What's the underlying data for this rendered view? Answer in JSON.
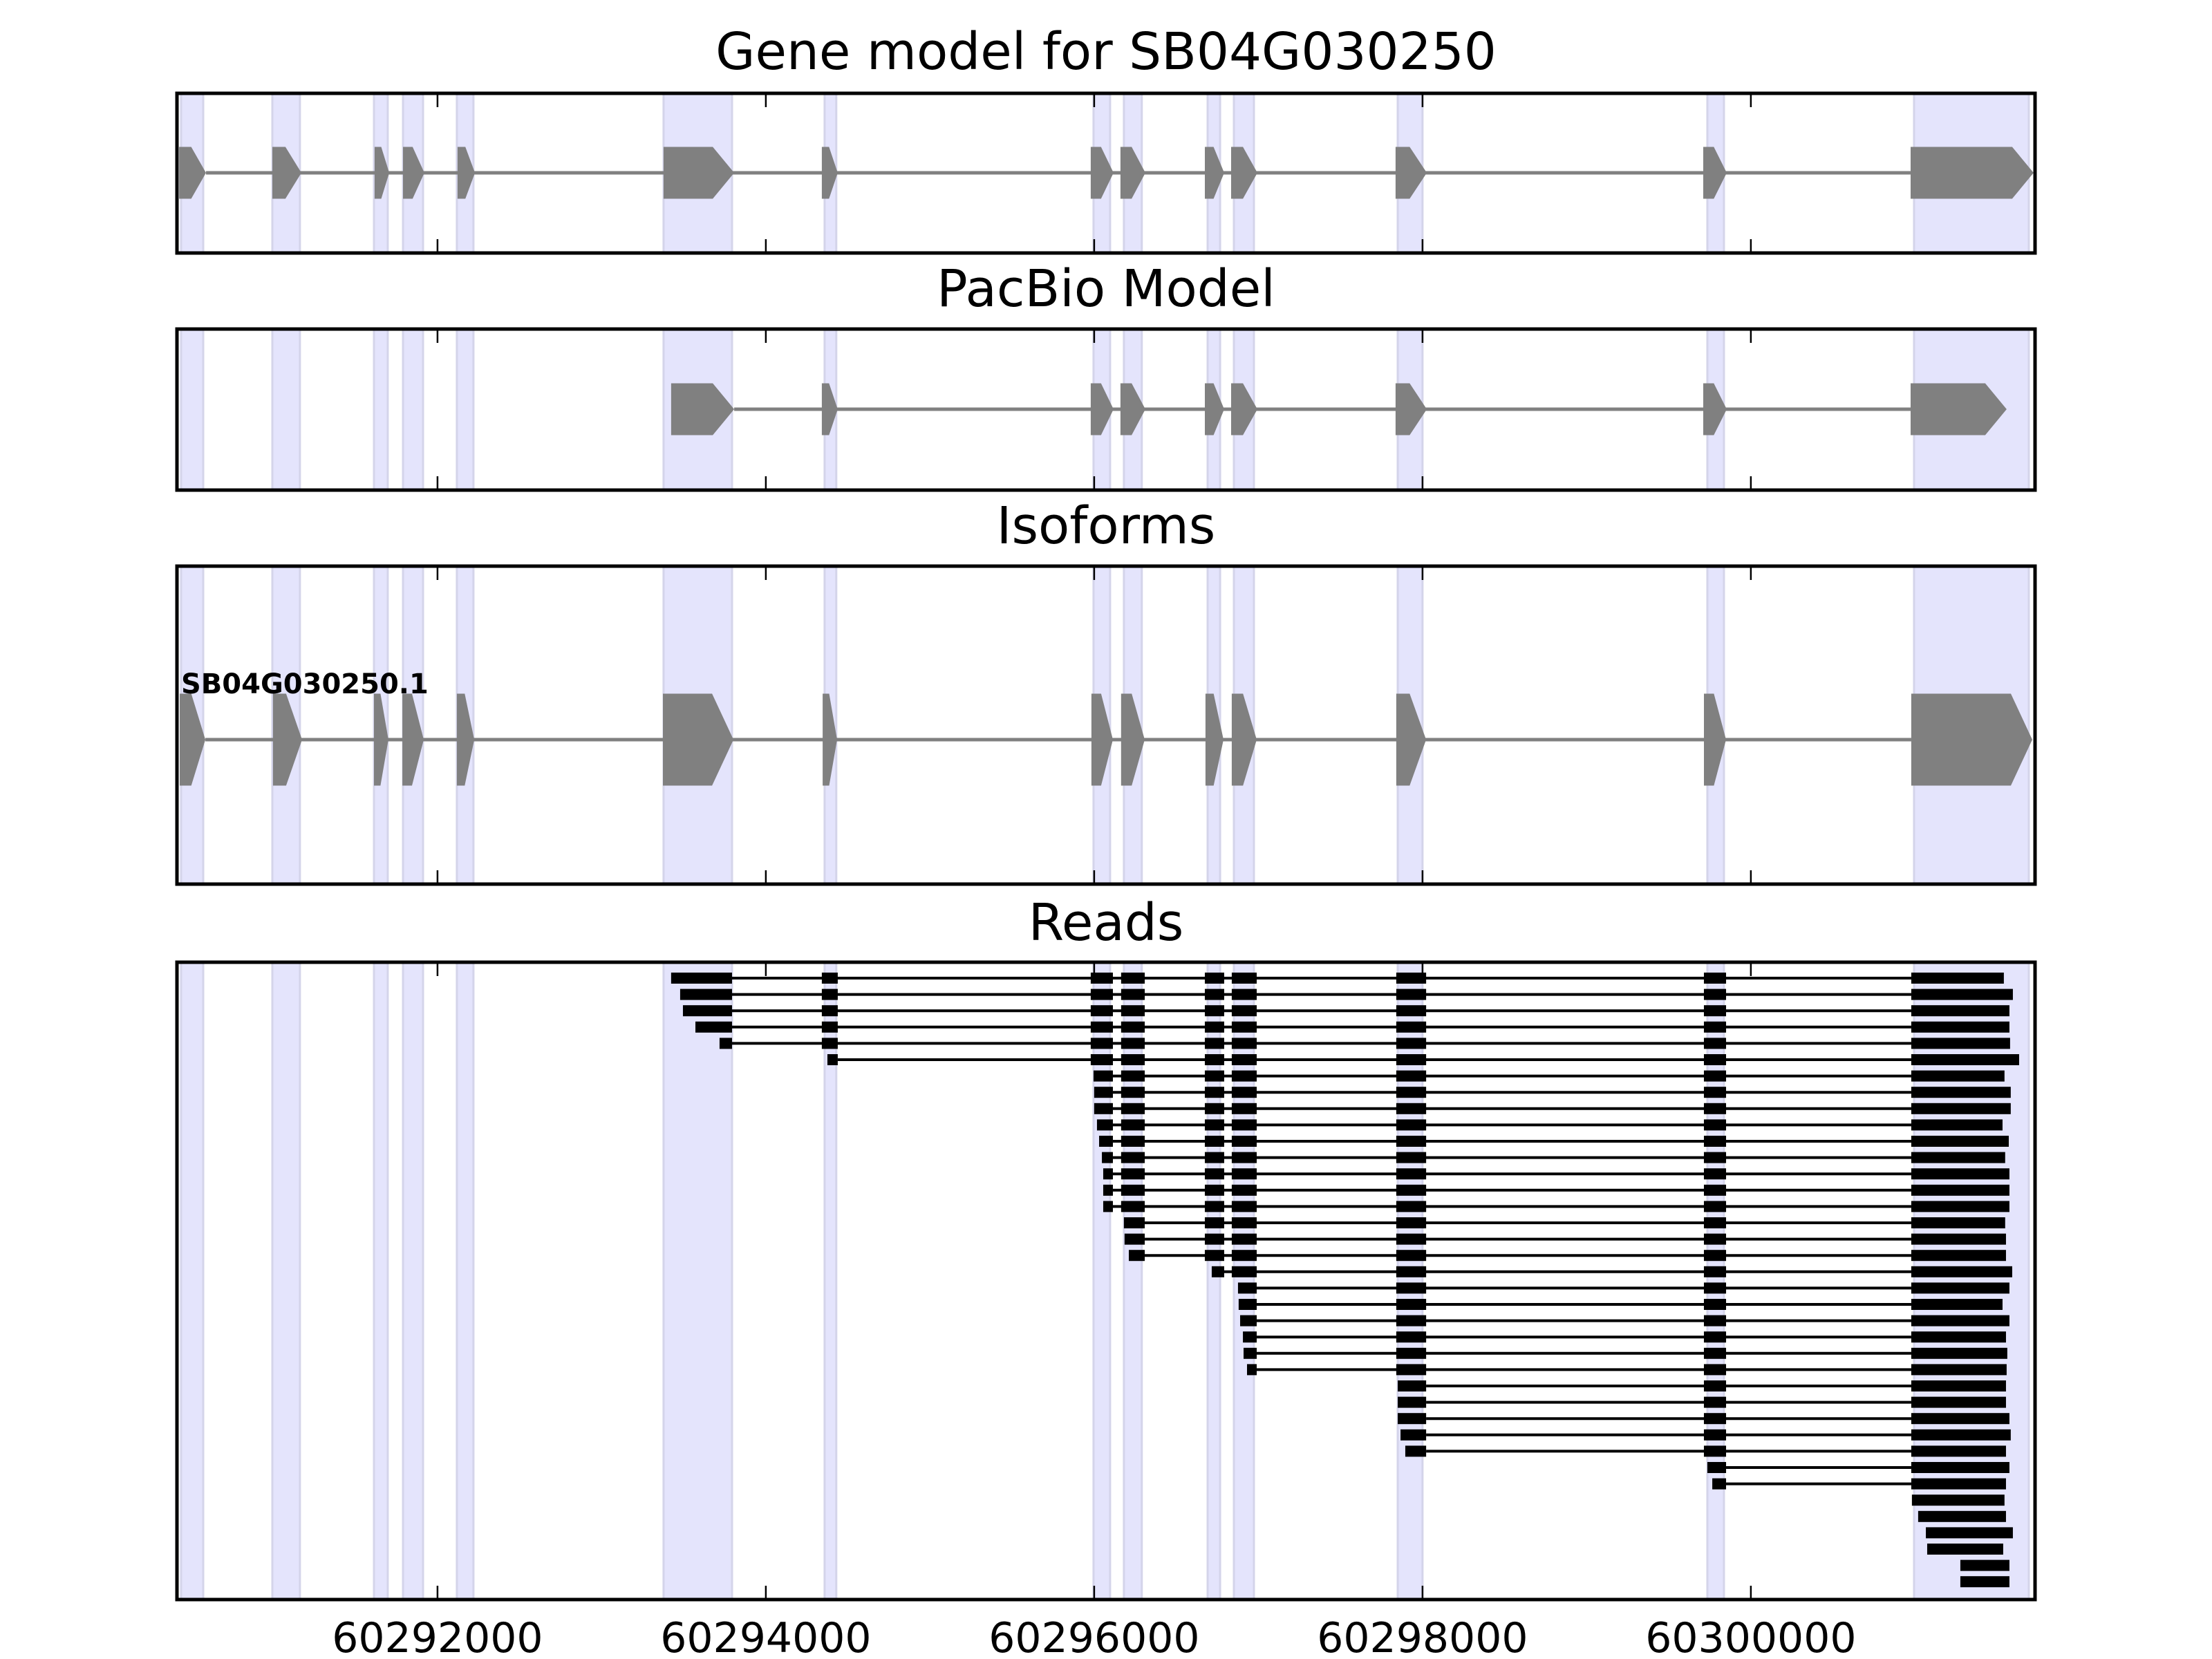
{
  "chart_data": {
    "type": "gene-structure",
    "xlim": [
      60290413,
      60301731
    ],
    "x_ticks": [
      60292000,
      60294000,
      60296000,
      60298000,
      60300000
    ],
    "x_tick_labels": [
      "60292000",
      "60294000",
      "60296000",
      "60298000",
      "60300000"
    ],
    "colors": {
      "exon": "#808080",
      "intron": "#808080",
      "read": "#000000",
      "band_fill": "#e4e4fc",
      "band_edge": "#d4d4ea",
      "frame": "#000000"
    },
    "highlight_bands": [
      [
        60290438,
        60290573
      ],
      [
        60290994,
        60291162
      ],
      [
        60291613,
        60291697
      ],
      [
        60291790,
        60291912
      ],
      [
        60292118,
        60292219
      ],
      [
        60293377,
        60293794
      ],
      [
        60294358,
        60294429
      ],
      [
        60295996,
        60296097
      ],
      [
        60296181,
        60296290
      ],
      [
        60296691,
        60296767
      ],
      [
        60296851,
        60296973
      ],
      [
        60297849,
        60298000
      ],
      [
        60299735,
        60299836
      ],
      [
        60300994,
        60301693
      ]
    ],
    "panels": [
      {
        "title": "Gene model for SB04G030250",
        "kind": "model",
        "exons": [
          [
            60290426,
            60290590
          ],
          [
            60290994,
            60291171
          ],
          [
            60291617,
            60291706
          ],
          [
            60291790,
            60291920
          ],
          [
            60292122,
            60292228
          ],
          [
            60293377,
            60293807
          ],
          [
            60294341,
            60294438
          ],
          [
            60295979,
            60296118
          ],
          [
            60296160,
            60296312
          ],
          [
            60296674,
            60296792
          ],
          [
            60296834,
            60296994
          ],
          [
            60297836,
            60298026
          ],
          [
            60299710,
            60299853
          ],
          [
            60300973,
            60301722
          ]
        ]
      },
      {
        "title": "PacBio Model",
        "kind": "model",
        "exons": [
          [
            60293423,
            60293807
          ],
          [
            60294341,
            60294438
          ],
          [
            60295979,
            60296118
          ],
          [
            60296160,
            60296312
          ],
          [
            60296674,
            60296792
          ],
          [
            60296834,
            60296994
          ],
          [
            60297836,
            60298026
          ],
          [
            60299710,
            60299853
          ],
          [
            60300973,
            60301558
          ]
        ]
      },
      {
        "title": "Isoforms",
        "kind": "isoform",
        "isoforms": [
          {
            "name": "SB04G030250.1",
            "exons": [
              [
                60290430,
                60290586
              ],
              [
                60290998,
                60291175
              ],
              [
                60291613,
                60291701
              ],
              [
                60291786,
                60291916
              ],
              [
                60292118,
                60292224
              ],
              [
                60293373,
                60293803
              ],
              [
                60294346,
                60294434
              ],
              [
                60295983,
                60296114
              ],
              [
                60296164,
                60296308
              ],
              [
                60296678,
                60296788
              ],
              [
                60296838,
                60296990
              ],
              [
                60297840,
                60298022
              ],
              [
                60299714,
                60299849
              ],
              [
                60300977,
                60301714
              ]
            ]
          }
        ]
      },
      {
        "title": "Reads",
        "kind": "reads",
        "read_exons": [
          [
            60293377,
            60293794
          ],
          [
            60294341,
            60294438
          ],
          [
            60295979,
            60296114
          ],
          [
            60296164,
            60296308
          ],
          [
            60296674,
            60296792
          ],
          [
            60296838,
            60296990
          ],
          [
            60297840,
            60298022
          ],
          [
            60299714,
            60299849
          ],
          [
            60300977,
            60301722
          ]
        ],
        "reads": [
          [
            60293423,
            60301541
          ],
          [
            60293478,
            60301596
          ],
          [
            60293495,
            60301575
          ],
          [
            60293571,
            60301575
          ],
          [
            60293718,
            60301579
          ],
          [
            60294375,
            60301634
          ],
          [
            60295996,
            60301545
          ],
          [
            60296000,
            60301583
          ],
          [
            60296000,
            60301583
          ],
          [
            60296017,
            60301533
          ],
          [
            60296030,
            60301571
          ],
          [
            60296047,
            60301549
          ],
          [
            60296055,
            60301575
          ],
          [
            60296055,
            60301575
          ],
          [
            60296055,
            60301575
          ],
          [
            60296181,
            60301549
          ],
          [
            60296185,
            60301554
          ],
          [
            60296211,
            60301554
          ],
          [
            60296716,
            60301592
          ],
          [
            60296876,
            60301575
          ],
          [
            60296880,
            60301533
          ],
          [
            60296889,
            60301575
          ],
          [
            60296906,
            60301554
          ],
          [
            60296910,
            60301562
          ],
          [
            60296931,
            60301558
          ],
          [
            60297849,
            60301554
          ],
          [
            60297849,
            60301554
          ],
          [
            60297849,
            60301575
          ],
          [
            60297866,
            60301583
          ],
          [
            60297895,
            60301554
          ],
          [
            60299735,
            60301575
          ],
          [
            60299765,
            60301554
          ],
          [
            60300981,
            60301545
          ],
          [
            60301019,
            60301554
          ],
          [
            60301066,
            60301596
          ],
          [
            60301074,
            60301537
          ],
          [
            60301276,
            60301575
          ],
          [
            60301276,
            60301575
          ]
        ]
      }
    ]
  }
}
